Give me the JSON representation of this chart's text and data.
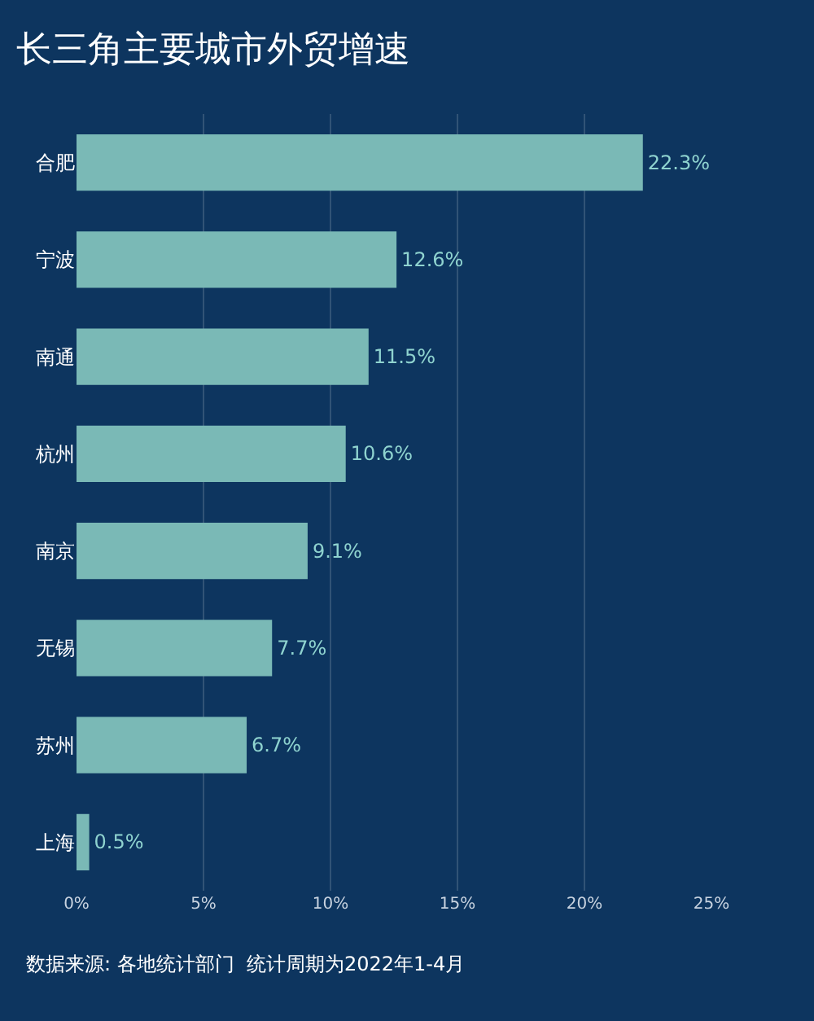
{
  "chart_data": {
    "type": "bar",
    "orientation": "horizontal",
    "title": "长三角主要城市外贸增速",
    "categories": [
      "合肥",
      "宁波",
      "南通",
      "杭州",
      "南京",
      "无锡",
      "苏州",
      "上海"
    ],
    "values": [
      22.3,
      12.6,
      11.5,
      10.6,
      9.1,
      7.7,
      6.7,
      0.5
    ],
    "value_labels": [
      "22.3%",
      "12.6%",
      "11.5%",
      "10.6%",
      "9.1%",
      "7.7%",
      "6.7%",
      "0.5%"
    ],
    "color": "#7ab9b6",
    "xlim": [
      0,
      25
    ],
    "xticks": [
      {
        "value": 0,
        "label": "0%"
      },
      {
        "value": 5,
        "label": "5%"
      },
      {
        "value": 10,
        "label": "10%"
      },
      {
        "value": 15,
        "label": "15%"
      },
      {
        "value": 20,
        "label": "20%"
      },
      {
        "value": 25,
        "label": "25%"
      }
    ],
    "grid": "x",
    "annotations": [
      "数据来源: 各地统计部门  统计周期为2022年1-4月"
    ]
  }
}
